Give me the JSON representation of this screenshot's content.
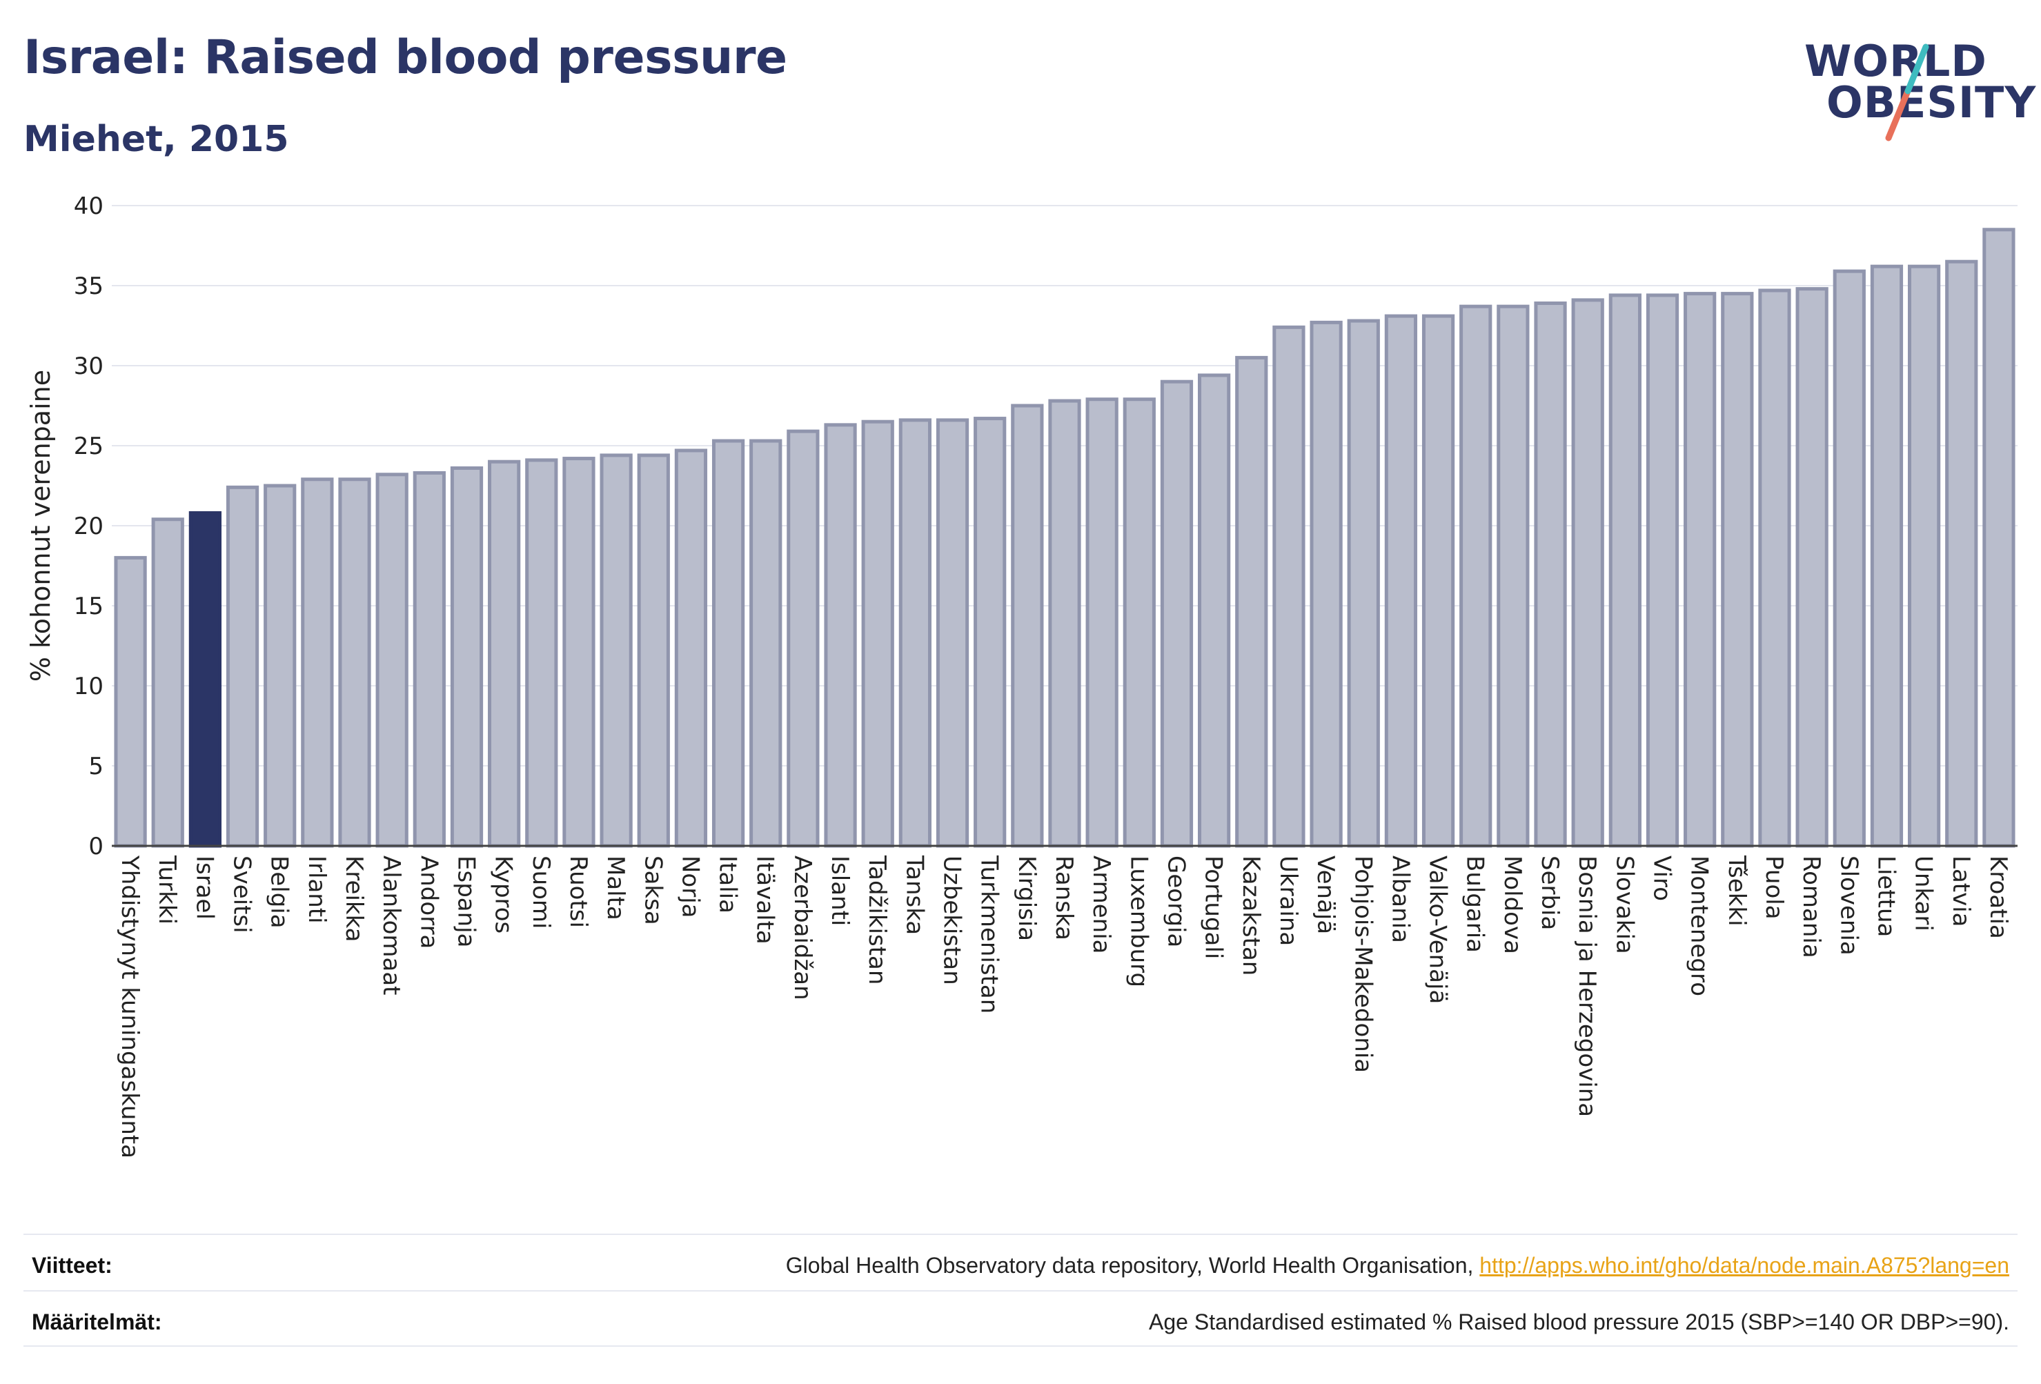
{
  "header": {
    "title": "Israel: Raised blood pressure",
    "subtitle": "Miehet, 2015"
  },
  "logo": {
    "line1": "WORLD",
    "line2": "OBESITY",
    "accent_colors": [
      "#3fbcc0",
      "#e8705a"
    ]
  },
  "chart_data": {
    "type": "bar",
    "ylabel": "% kohonnut verenpaine",
    "ylim": [
      0,
      40
    ],
    "yticks": [
      0,
      5,
      10,
      15,
      20,
      25,
      30,
      35,
      40
    ],
    "highlight": "Israel",
    "colors": {
      "bar": "#b9bdcc",
      "bar_edge": "#9095ad",
      "highlight": "#2b3566",
      "grid": "#e4e6ee"
    },
    "categories": [
      "Yhdistynyt kuningaskunta",
      "Turkki",
      "Israel",
      "Sveitsi",
      "Belgia",
      "Irlanti",
      "Kreikka",
      "Alankomaat",
      "Andorra",
      "Espanja",
      "Kypros",
      "Suomi",
      "Ruotsi",
      "Malta",
      "Saksa",
      "Norja",
      "Italia",
      "Itävalta",
      "Azerbaidžan",
      "Islanti",
      "Tadžikistan",
      "Tanska",
      "Uzbekistan",
      "Turkmenistan",
      "Kirgisia",
      "Ranska",
      "Armenia",
      "Luxemburg",
      "Georgia",
      "Portugali",
      "Kazakstan",
      "Ukraina",
      "Venäjä",
      "Pohjois-Makedonia",
      "Albania",
      "Valko-Venäjä",
      "Bulgaria",
      "Moldova",
      "Serbia",
      "Bosnia ja Herzegovina",
      "Slovakia",
      "Viro",
      "Montenegro",
      "Tšekki",
      "Puola",
      "Romania",
      "Slovenia",
      "Liettua",
      "Unkari",
      "Latvia",
      "Kroatia"
    ],
    "values": [
      18.0,
      20.4,
      20.8,
      22.4,
      22.5,
      22.9,
      22.9,
      23.2,
      23.3,
      23.6,
      24.0,
      24.1,
      24.2,
      24.4,
      24.4,
      24.7,
      25.3,
      25.3,
      25.9,
      26.3,
      26.5,
      26.6,
      26.6,
      26.7,
      27.5,
      27.8,
      27.9,
      27.9,
      29.0,
      29.4,
      30.5,
      32.4,
      32.7,
      32.8,
      33.1,
      33.1,
      33.7,
      33.7,
      33.9,
      34.1,
      34.4,
      34.4,
      34.5,
      34.5,
      34.7,
      34.8,
      35.9,
      36.2,
      36.2,
      36.5,
      38.5
    ]
  },
  "footer": {
    "sources_label": "Viitteet:",
    "sources_text": "Global Health Observatory data repository, World Health Organisation, ",
    "sources_link": "http://apps.who.int/gho/data/node.main.A875?lang=en",
    "definitions_label": "Määritelmät:",
    "definitions_text": "Age Standardised estimated % Raised blood pressure 2015 (SBP>=140 OR DBP>=90)."
  }
}
